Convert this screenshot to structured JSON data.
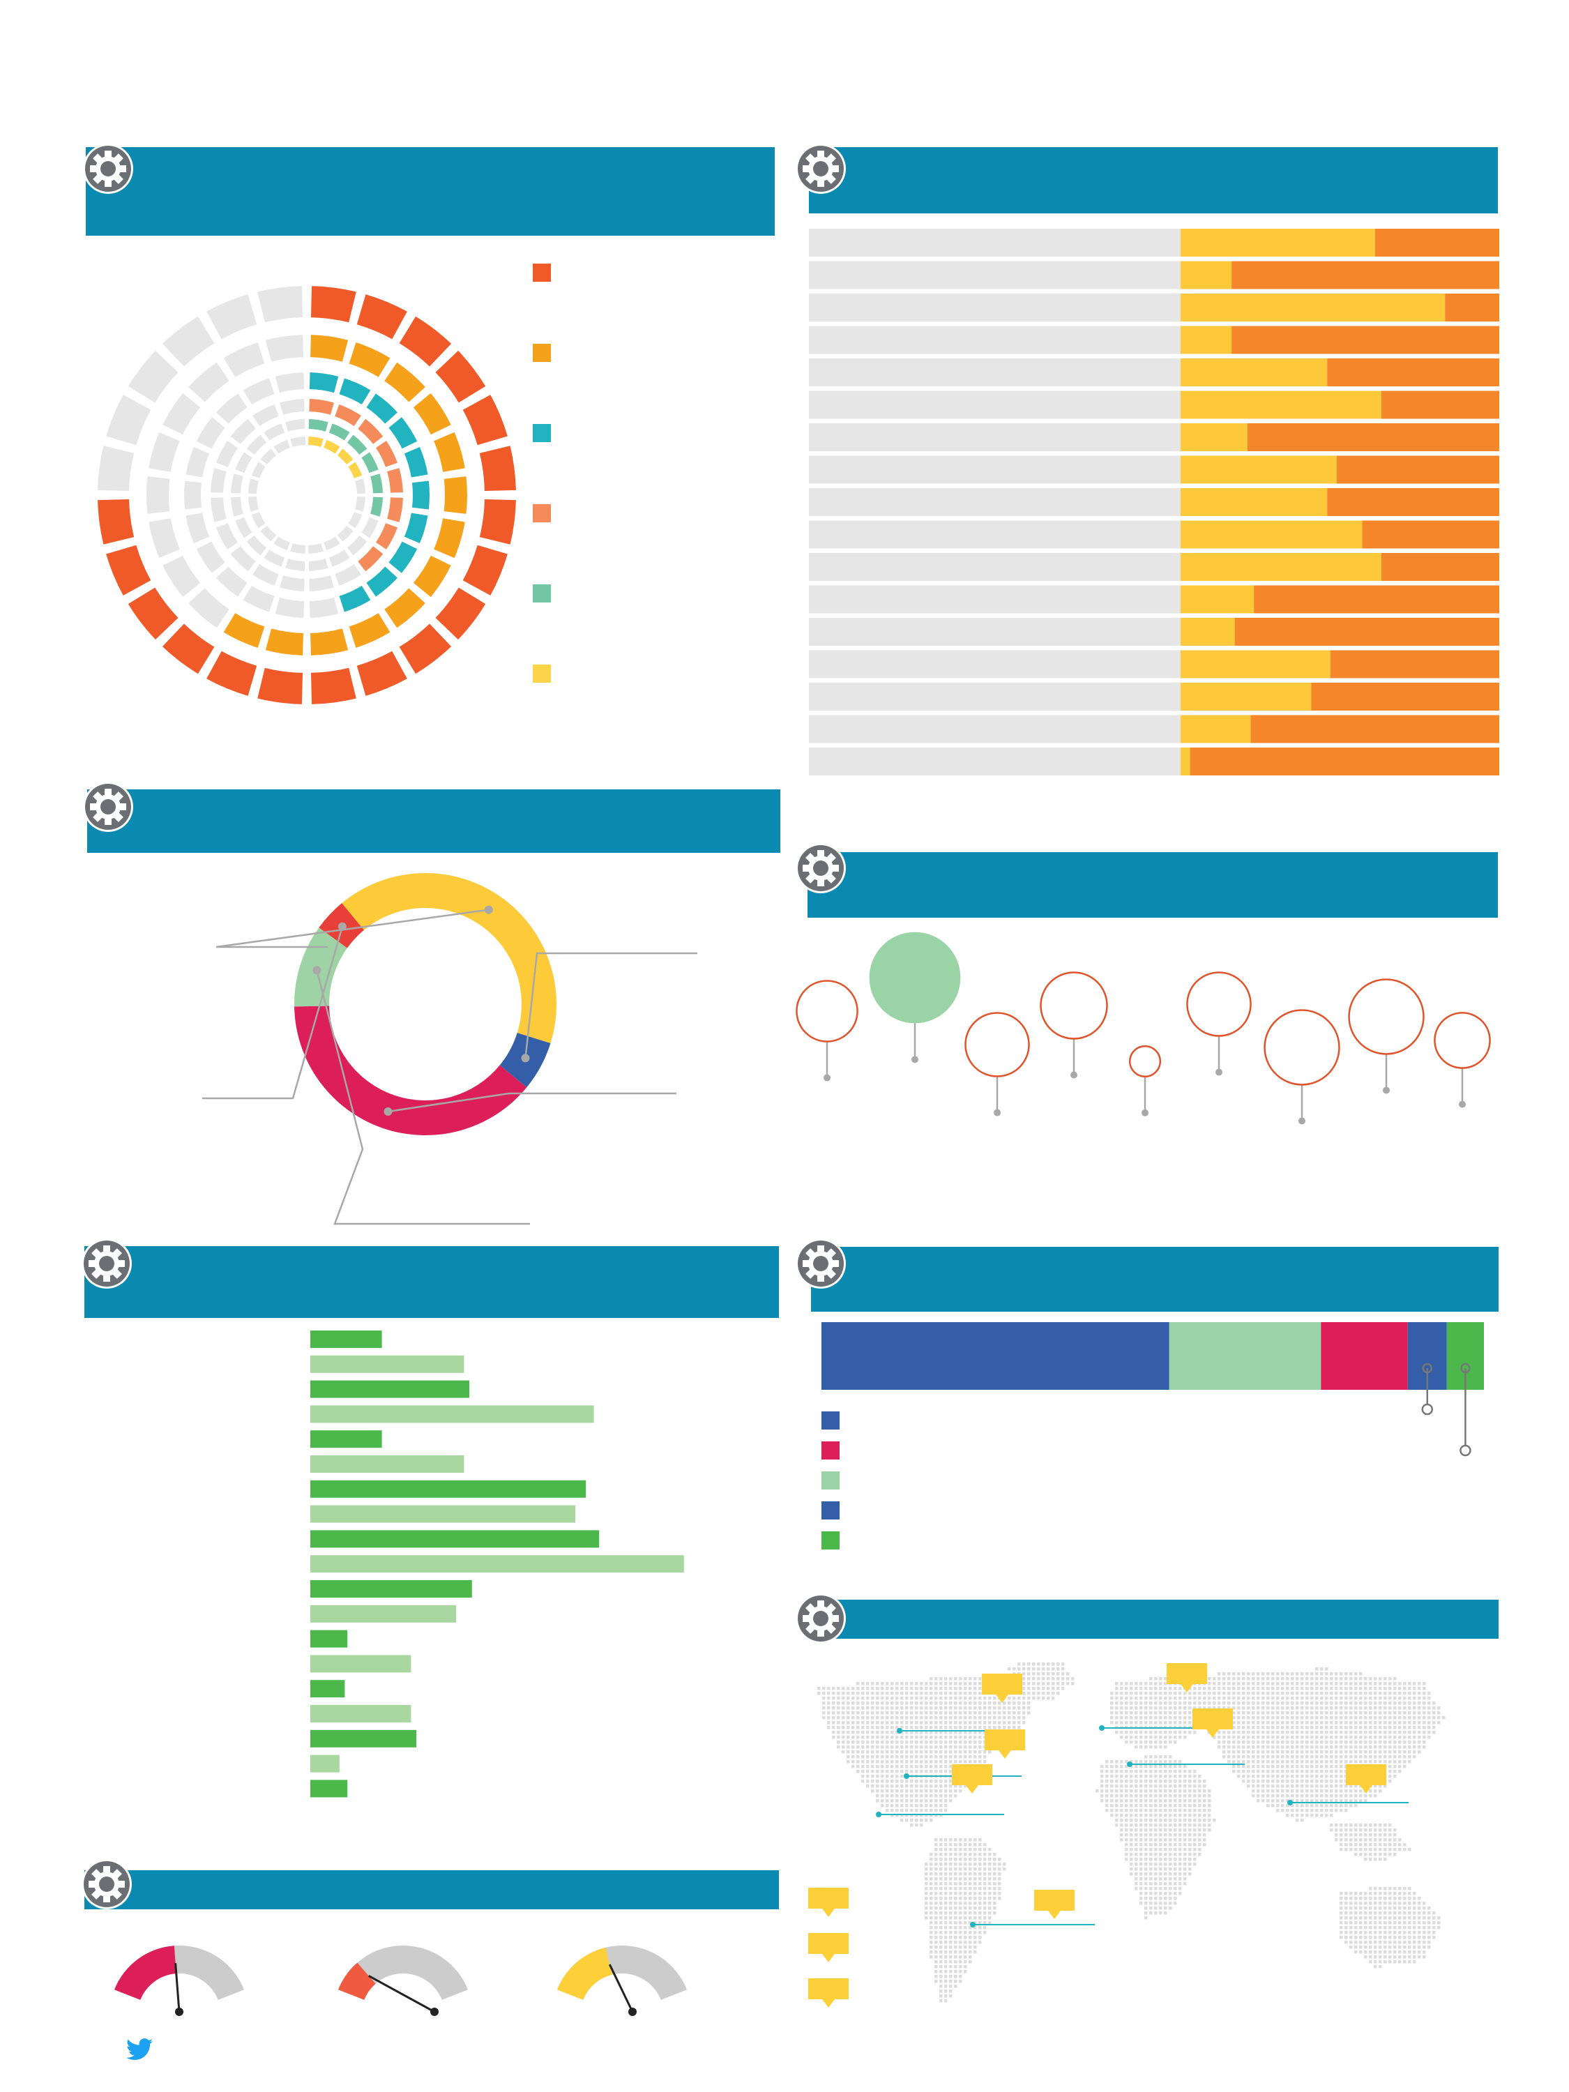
{
  "colors": {
    "banner": "#0a8ab0",
    "grey_track": "#e6e6e6",
    "red": "#f05a28",
    "orange": "#f6a11a",
    "teal": "#21b3c0",
    "salmon": "#f58b5a",
    "mint": "#72c6a4",
    "yellow": "#fdd349",
    "bar_yellow": "#fdc93a",
    "bar_orange": "#f6862a",
    "bar_grey": "#e6e6e6",
    "donut_yellow": "#fdca3a",
    "donut_blue": "#345ea8",
    "donut_crimson": "#dc1f58",
    "donut_mint": "#9ed3a5",
    "donut_red": "#e84038",
    "bubble_green": "#9ad3a6",
    "bubble_ring": "#e0542c",
    "hbar_green": "#4cb84c",
    "hbar_light": "#a8d8a0",
    "stack_blue": "#355ea9",
    "stack_mint": "#9ad3a6",
    "stack_crimson": "#dc1f58",
    "stack_green": "#4cb84c",
    "gauge_crimson": "#dc1f58",
    "gauge_red": "#f05a41",
    "gauge_yellow": "#fdcf38",
    "gauge_grey": "#cccccc",
    "map_dot": "#dcdcdc",
    "pin_yellow": "#fdcf38",
    "pin_line": "#21b3c0",
    "twitter": "#1da1f2"
  },
  "icons": {
    "section": "gear-icon",
    "footer": "twitter-icon"
  },
  "radial_chart": {
    "ring_fills": [
      0.75,
      0.58,
      0.45,
      0.38,
      0.3,
      0.22
    ]
  },
  "stacked_bars": {
    "yellow_shares": [
      0.61,
      0.16,
      0.83,
      0.16,
      0.46,
      0.63,
      0.21,
      0.49,
      0.46,
      0.57,
      0.63,
      0.23,
      0.17,
      0.47,
      0.41,
      0.22,
      0.03
    ]
  },
  "donut": {
    "segments": [
      {
        "color_key": "donut_yellow",
        "value": 40
      },
      {
        "color_key": "donut_blue",
        "value": 6
      },
      {
        "color_key": "donut_crimson",
        "value": 38
      },
      {
        "color_key": "donut_mint",
        "value": 10
      },
      {
        "color_key": "donut_red",
        "value": 4
      }
    ]
  },
  "bubbles": {
    "values": [
      {
        "size": 22,
        "filled": false
      },
      {
        "size": 33,
        "filled": true
      },
      {
        "size": 23,
        "filled": false
      },
      {
        "size": 24,
        "filled": false
      },
      {
        "size": 11,
        "filled": false
      },
      {
        "size": 23,
        "filled": false
      },
      {
        "size": 27,
        "filled": false
      },
      {
        "size": 27,
        "filled": false
      },
      {
        "size": 20,
        "filled": false
      }
    ]
  },
  "hbars": {
    "values": [
      27,
      58,
      60,
      107,
      27,
      58,
      104,
      100,
      109,
      141,
      61,
      55,
      14,
      38,
      13,
      38,
      40,
      11,
      14
    ]
  },
  "stack_strip": {
    "segments": [
      {
        "color_key": "stack_blue",
        "value": 52.5
      },
      {
        "color_key": "stack_mint",
        "value": 22.9
      },
      {
        "color_key": "stack_crimson",
        "value": 13.1
      },
      {
        "color_key": "stack_blue",
        "value": 5.9
      },
      {
        "color_key": "stack_green",
        "value": 5.6
      }
    ],
    "legend_color_keys": [
      "stack_blue",
      "stack_crimson",
      "stack_mint",
      "stack_blue",
      "stack_green"
    ]
  },
  "gauges": [
    {
      "color_key": "gauge_crimson",
      "level": 0.47
    },
    {
      "color_key": "gauge_red",
      "level": 0.2
    },
    {
      "color_key": "gauge_yellow",
      "level": 0.4
    }
  ]
}
